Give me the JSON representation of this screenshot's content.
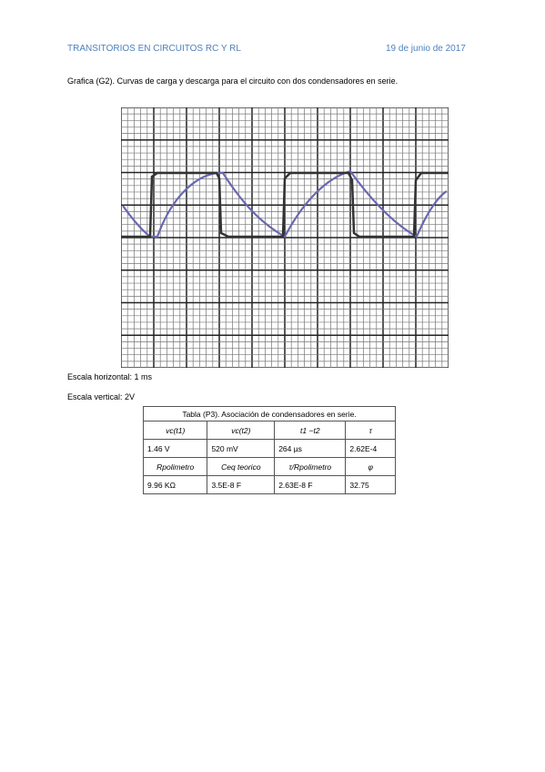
{
  "header": {
    "title": "TRANSITORIOS EN CIRCUITOS RC Y RL",
    "date": "19 de junio de 2017"
  },
  "caption": "Grafica (G2). Curvas de carga y descarga para el circuito con dos condensadores en serie.",
  "scales": [
    "Escala horizontal: 1 ms",
    "Escala vertical: 2V"
  ],
  "table": {
    "title": "Tabla (P3). Asociación de condensadores en serie.",
    "rows": [
      [
        "vc(t1)",
        "vc(t2)",
        "t1 −t2",
        "τ"
      ],
      [
        "1.46 V",
        "520 mV",
        "264 µs",
        "2.62E-4"
      ],
      [
        "Rpolimetro",
        "Ceq teorico",
        "τ/Rpolimetro",
        "φ"
      ],
      [
        "9.96 KΩ",
        "3.5E-8 F",
        "2.63E-8 F",
        "32.75"
      ]
    ]
  }
}
